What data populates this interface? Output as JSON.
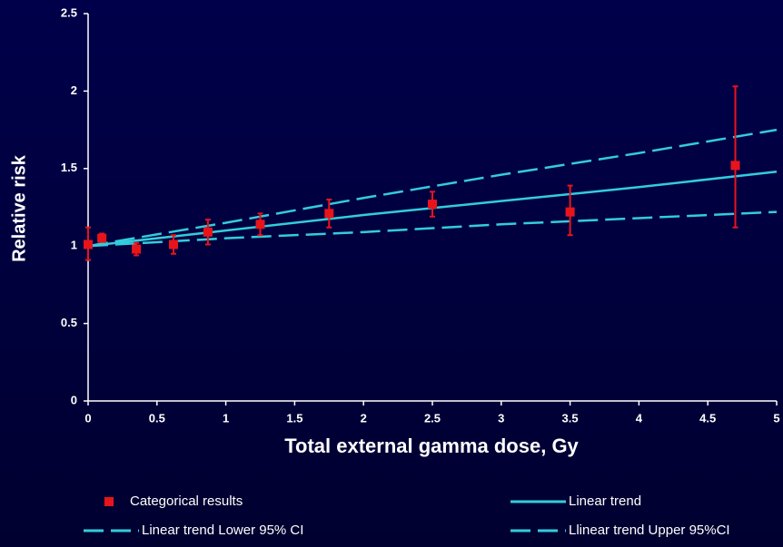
{
  "chart_data": {
    "type": "scatter",
    "x_label": "Total external gamma dose, Gy",
    "y_label": "Relative risk",
    "xlim": [
      0,
      5
    ],
    "ylim": [
      0,
      2.5
    ],
    "xticks": [
      0,
      0.5,
      1,
      1.5,
      2,
      2.5,
      3,
      3.5,
      4,
      4.5,
      5
    ],
    "yticks": [
      0,
      0.5,
      1,
      1.5,
      2,
      2.5
    ],
    "series": [
      {
        "name": "Categorical results",
        "type": "scatter",
        "color": "#e8141c",
        "x": [
          0,
          0.1,
          0.35,
          0.62,
          0.87,
          1.25,
          1.75,
          2.5,
          3.5,
          4.7
        ],
        "values": [
          1.01,
          1.05,
          0.98,
          1.01,
          1.09,
          1.14,
          1.21,
          1.27,
          1.22,
          1.52
        ],
        "lower": [
          0.91,
          1.03,
          0.94,
          0.95,
          1.01,
          1.07,
          1.12,
          1.19,
          1.07,
          1.12
        ],
        "upper": [
          1.12,
          1.08,
          1.02,
          1.07,
          1.17,
          1.21,
          1.3,
          1.35,
          1.39,
          2.03
        ]
      },
      {
        "name": "Linear trend",
        "type": "line",
        "color": "#33ccdd",
        "dashed": false,
        "x": [
          0,
          1,
          2,
          3,
          4,
          5
        ],
        "values": [
          1,
          1.1,
          1.2,
          1.29,
          1.38,
          1.48
        ]
      },
      {
        "name": "Linear trend Lower 95% CI",
        "type": "line",
        "color": "#33ccdd",
        "dashed": true,
        "x": [
          0,
          1,
          2,
          3,
          4,
          5
        ],
        "values": [
          1,
          1.05,
          1.09,
          1.14,
          1.18,
          1.22
        ]
      },
      {
        "name": "Llinear trend Upper 95%CI",
        "type": "line",
        "color": "#33ccdd",
        "dashed": true,
        "x": [
          0,
          1,
          2,
          3,
          4,
          5
        ],
        "values": [
          1,
          1.15,
          1.31,
          1.46,
          1.6,
          1.75
        ]
      }
    ]
  }
}
